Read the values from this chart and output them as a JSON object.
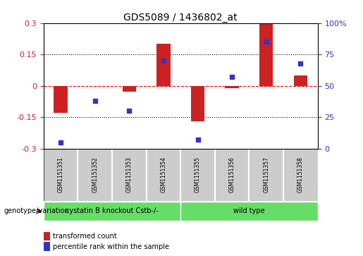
{
  "title": "GDS5089 / 1436802_at",
  "samples": [
    "GSM1151351",
    "GSM1151352",
    "GSM1151353",
    "GSM1151354",
    "GSM1151355",
    "GSM1151356",
    "GSM1151357",
    "GSM1151358"
  ],
  "bar_values": [
    -0.13,
    0.0,
    -0.03,
    0.2,
    -0.17,
    -0.01,
    0.295,
    0.05
  ],
  "dot_values": [
    5,
    38,
    30,
    70,
    7,
    57,
    85,
    68
  ],
  "bar_color": "#cc2222",
  "dot_color": "#3333cc",
  "ylim_left": [
    -0.3,
    0.3
  ],
  "ylim_right": [
    0,
    100
  ],
  "yticks_left": [
    -0.3,
    -0.15,
    0.0,
    0.15,
    0.3
  ],
  "yticks_right": [
    0,
    25,
    50,
    75,
    100
  ],
  "group1_label": "cystatin B knockout Cstb-/-",
  "group2_label": "wild type",
  "group_color": "#66dd66",
  "group_row_label": "genotype/variation",
  "legend_bar_label": "transformed count",
  "legend_dot_label": "percentile rank within the sample",
  "bg_color": "#ffffff",
  "sample_box_color": "#cccccc",
  "left_tick_color": "#cc2222",
  "right_tick_color": "#3333cc",
  "title_fontsize": 10,
  "bar_width": 0.4
}
